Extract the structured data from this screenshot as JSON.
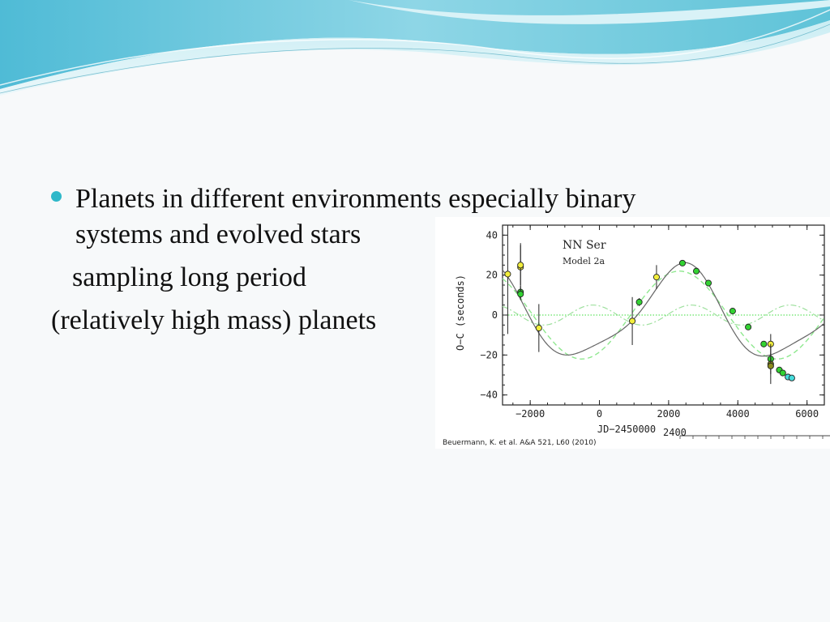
{
  "slide": {
    "bullet_line1": "Planets in different environments especially binary",
    "bullet_line2": "systems and evolved stars",
    "line3": "sampling long period",
    "line4": "(relatively high mass) planets"
  },
  "colors": {
    "bullet": "#2fb8c9",
    "banner_dark": "#5fc3d8",
    "banner_light": "#b7e6ef",
    "model_line": "#666666",
    "model_dashed": "#8fe88f",
    "dashdot": "#9ee09e",
    "zero_line": "#3bdc3b"
  },
  "chart_data": {
    "type": "scatter",
    "title": "NN Ser",
    "subtitle": "Model 2a",
    "xlabel": "JD−2450000",
    "ylabel": "O−C  (seconds)",
    "xlim": [
      -2800,
      6500
    ],
    "ylim": [
      -45,
      45
    ],
    "xticks": [
      -2000,
      0,
      2000,
      4000,
      6000
    ],
    "xtick_labels": [
      "−2000",
      "0",
      "2000",
      "4000",
      "6000"
    ],
    "yticks": [
      -40,
      -20,
      0,
      20,
      40
    ],
    "ytick_labels": [
      "−40",
      "−20",
      "0",
      "20",
      "40"
    ],
    "citation": "Beuermann, K. et al. A&A 521, L60 (2010)",
    "stray_label": "2400",
    "series": [
      {
        "color": "yellow",
        "fill": "#f2ee3c",
        "points": [
          {
            "x": -2650,
            "y": 20.5,
            "err": 30
          },
          {
            "x": -2280,
            "y": 24,
            "err": 12
          },
          {
            "x": -2280,
            "y": 25,
            "err": 10
          },
          {
            "x": -1750,
            "y": -6.5,
            "err": 12
          },
          {
            "x": 950,
            "y": -3,
            "err": 12
          },
          {
            "x": 1650,
            "y": 19,
            "err": 6
          },
          {
            "x": 4950,
            "y": -14.5,
            "err": 5
          }
        ]
      },
      {
        "color": "green",
        "fill": "#32d232",
        "points": [
          {
            "x": -2280,
            "y": 11.5,
            "err": 3
          },
          {
            "x": -2280,
            "y": 10.5,
            "err": 3
          },
          {
            "x": 1150,
            "y": 6.5,
            "err": 2
          },
          {
            "x": 2400,
            "y": 26,
            "err": 1.5
          },
          {
            "x": 2800,
            "y": 22,
            "err": 1.5
          },
          {
            "x": 3150,
            "y": 16,
            "err": 1.5
          },
          {
            "x": 3850,
            "y": 2,
            "err": 1.5
          },
          {
            "x": 4300,
            "y": -6,
            "err": 1.5
          },
          {
            "x": 4750,
            "y": -14.5,
            "err": 1.5
          },
          {
            "x": 4950,
            "y": -22,
            "err": 3
          },
          {
            "x": 5200,
            "y": -27.5,
            "err": 1
          },
          {
            "x": 5300,
            "y": -29,
            "err": 1
          }
        ]
      },
      {
        "color": "olive",
        "fill": "#8a8a1e",
        "points": [
          {
            "x": 4950,
            "y": -24.5,
            "err": 10
          },
          {
            "x": 4950,
            "y": -25.5,
            "err": 4
          }
        ]
      },
      {
        "color": "cyan",
        "fill": "#46dcdc",
        "points": [
          {
            "x": 5450,
            "y": -31,
            "err": 1
          },
          {
            "x": 5560,
            "y": -31.5,
            "err": 1
          }
        ]
      }
    ]
  }
}
